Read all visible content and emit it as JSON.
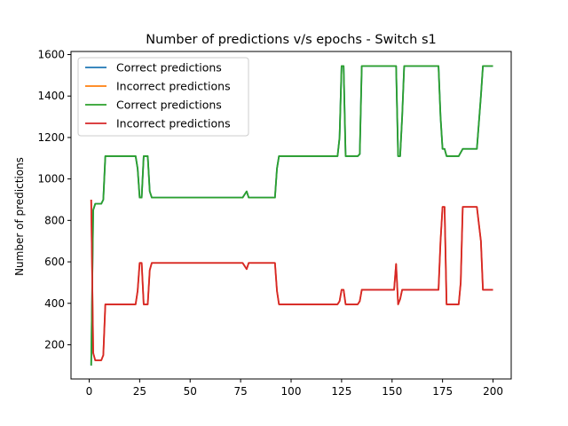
{
  "chart_data": {
    "type": "line",
    "title": "Number of predictions v/s epochs - Switch s1",
    "xlabel": "",
    "ylabel": "Number of predictions",
    "xlim": [
      -9,
      209
    ],
    "ylim": [
      35,
      1615
    ],
    "xticks": [
      0,
      25,
      50,
      75,
      100,
      125,
      150,
      175,
      200
    ],
    "yticks": [
      200,
      400,
      600,
      800,
      1000,
      1200,
      1400,
      1600
    ],
    "legend_position": "top-left",
    "grid": false,
    "series": [
      {
        "name": "Correct predictions",
        "color": "#1f77b4",
        "points": [
          [
            1,
            100
          ],
          [
            2,
            850
          ],
          [
            3,
            880
          ],
          [
            6,
            880
          ],
          [
            7,
            900
          ],
          [
            8,
            1110
          ],
          [
            23,
            1110
          ],
          [
            24,
            1050
          ],
          [
            25,
            910
          ],
          [
            26,
            910
          ],
          [
            27,
            1110
          ],
          [
            29,
            1110
          ],
          [
            30,
            940
          ],
          [
            31,
            910
          ],
          [
            76,
            910
          ],
          [
            78,
            940
          ],
          [
            79,
            910
          ],
          [
            92,
            910
          ],
          [
            93,
            1050
          ],
          [
            94,
            1110
          ],
          [
            123,
            1110
          ],
          [
            124,
            1200
          ],
          [
            125,
            1545
          ],
          [
            126,
            1545
          ],
          [
            127,
            1110
          ],
          [
            133,
            1110
          ],
          [
            134,
            1120
          ],
          [
            135,
            1545
          ],
          [
            152,
            1545
          ],
          [
            153,
            1110
          ],
          [
            154,
            1110
          ],
          [
            155,
            1300
          ],
          [
            156,
            1545
          ],
          [
            173,
            1545
          ],
          [
            174,
            1300
          ],
          [
            175,
            1145
          ],
          [
            176,
            1145
          ],
          [
            177,
            1110
          ],
          [
            183,
            1110
          ],
          [
            185,
            1145
          ],
          [
            192,
            1145
          ],
          [
            194,
            1400
          ],
          [
            195,
            1545
          ],
          [
            200,
            1545
          ]
        ]
      },
      {
        "name": "Incorrect predictions",
        "color": "#ff7f0e",
        "points": [
          [
            1,
            900
          ],
          [
            2,
            160
          ],
          [
            3,
            125
          ],
          [
            6,
            125
          ],
          [
            7,
            150
          ],
          [
            8,
            395
          ],
          [
            23,
            395
          ],
          [
            24,
            460
          ],
          [
            25,
            595
          ],
          [
            26,
            595
          ],
          [
            27,
            395
          ],
          [
            29,
            395
          ],
          [
            30,
            560
          ],
          [
            31,
            595
          ],
          [
            76,
            595
          ],
          [
            78,
            565
          ],
          [
            79,
            595
          ],
          [
            92,
            595
          ],
          [
            93,
            460
          ],
          [
            94,
            395
          ],
          [
            123,
            395
          ],
          [
            124,
            410
          ],
          [
            125,
            465
          ],
          [
            126,
            465
          ],
          [
            127,
            395
          ],
          [
            133,
            395
          ],
          [
            134,
            410
          ],
          [
            135,
            465
          ],
          [
            151,
            465
          ],
          [
            152,
            590
          ],
          [
            153,
            395
          ],
          [
            154,
            420
          ],
          [
            155,
            465
          ],
          [
            173,
            465
          ],
          [
            174,
            700
          ],
          [
            175,
            865
          ],
          [
            176,
            865
          ],
          [
            177,
            395
          ],
          [
            183,
            395
          ],
          [
            184,
            500
          ],
          [
            185,
            865
          ],
          [
            192,
            865
          ],
          [
            194,
            700
          ],
          [
            195,
            465
          ],
          [
            200,
            465
          ]
        ]
      },
      {
        "name": "Correct predictions",
        "color": "#2ca02c",
        "points": [
          [
            1,
            100
          ],
          [
            2,
            850
          ],
          [
            3,
            880
          ],
          [
            6,
            880
          ],
          [
            7,
            900
          ],
          [
            8,
            1110
          ],
          [
            23,
            1110
          ],
          [
            24,
            1050
          ],
          [
            25,
            910
          ],
          [
            26,
            910
          ],
          [
            27,
            1110
          ],
          [
            29,
            1110
          ],
          [
            30,
            940
          ],
          [
            31,
            910
          ],
          [
            76,
            910
          ],
          [
            78,
            940
          ],
          [
            79,
            910
          ],
          [
            92,
            910
          ],
          [
            93,
            1050
          ],
          [
            94,
            1110
          ],
          [
            123,
            1110
          ],
          [
            124,
            1200
          ],
          [
            125,
            1545
          ],
          [
            126,
            1545
          ],
          [
            127,
            1110
          ],
          [
            133,
            1110
          ],
          [
            134,
            1120
          ],
          [
            135,
            1545
          ],
          [
            152,
            1545
          ],
          [
            153,
            1110
          ],
          [
            154,
            1110
          ],
          [
            155,
            1300
          ],
          [
            156,
            1545
          ],
          [
            173,
            1545
          ],
          [
            174,
            1300
          ],
          [
            175,
            1145
          ],
          [
            176,
            1145
          ],
          [
            177,
            1110
          ],
          [
            183,
            1110
          ],
          [
            185,
            1145
          ],
          [
            192,
            1145
          ],
          [
            194,
            1400
          ],
          [
            195,
            1545
          ],
          [
            200,
            1545
          ]
        ]
      },
      {
        "name": "Incorrect predictions",
        "color": "#d62728",
        "points": [
          [
            1,
            900
          ],
          [
            2,
            160
          ],
          [
            3,
            125
          ],
          [
            6,
            125
          ],
          [
            7,
            150
          ],
          [
            8,
            395
          ],
          [
            23,
            395
          ],
          [
            24,
            460
          ],
          [
            25,
            595
          ],
          [
            26,
            595
          ],
          [
            27,
            395
          ],
          [
            29,
            395
          ],
          [
            30,
            560
          ],
          [
            31,
            595
          ],
          [
            76,
            595
          ],
          [
            78,
            565
          ],
          [
            79,
            595
          ],
          [
            92,
            595
          ],
          [
            93,
            460
          ],
          [
            94,
            395
          ],
          [
            123,
            395
          ],
          [
            124,
            410
          ],
          [
            125,
            465
          ],
          [
            126,
            465
          ],
          [
            127,
            395
          ],
          [
            133,
            395
          ],
          [
            134,
            410
          ],
          [
            135,
            465
          ],
          [
            151,
            465
          ],
          [
            152,
            590
          ],
          [
            153,
            395
          ],
          [
            154,
            420
          ],
          [
            155,
            465
          ],
          [
            173,
            465
          ],
          [
            174,
            700
          ],
          [
            175,
            865
          ],
          [
            176,
            865
          ],
          [
            177,
            395
          ],
          [
            183,
            395
          ],
          [
            184,
            500
          ],
          [
            185,
            865
          ],
          [
            192,
            865
          ],
          [
            194,
            700
          ],
          [
            195,
            465
          ],
          [
            200,
            465
          ]
        ]
      }
    ]
  }
}
